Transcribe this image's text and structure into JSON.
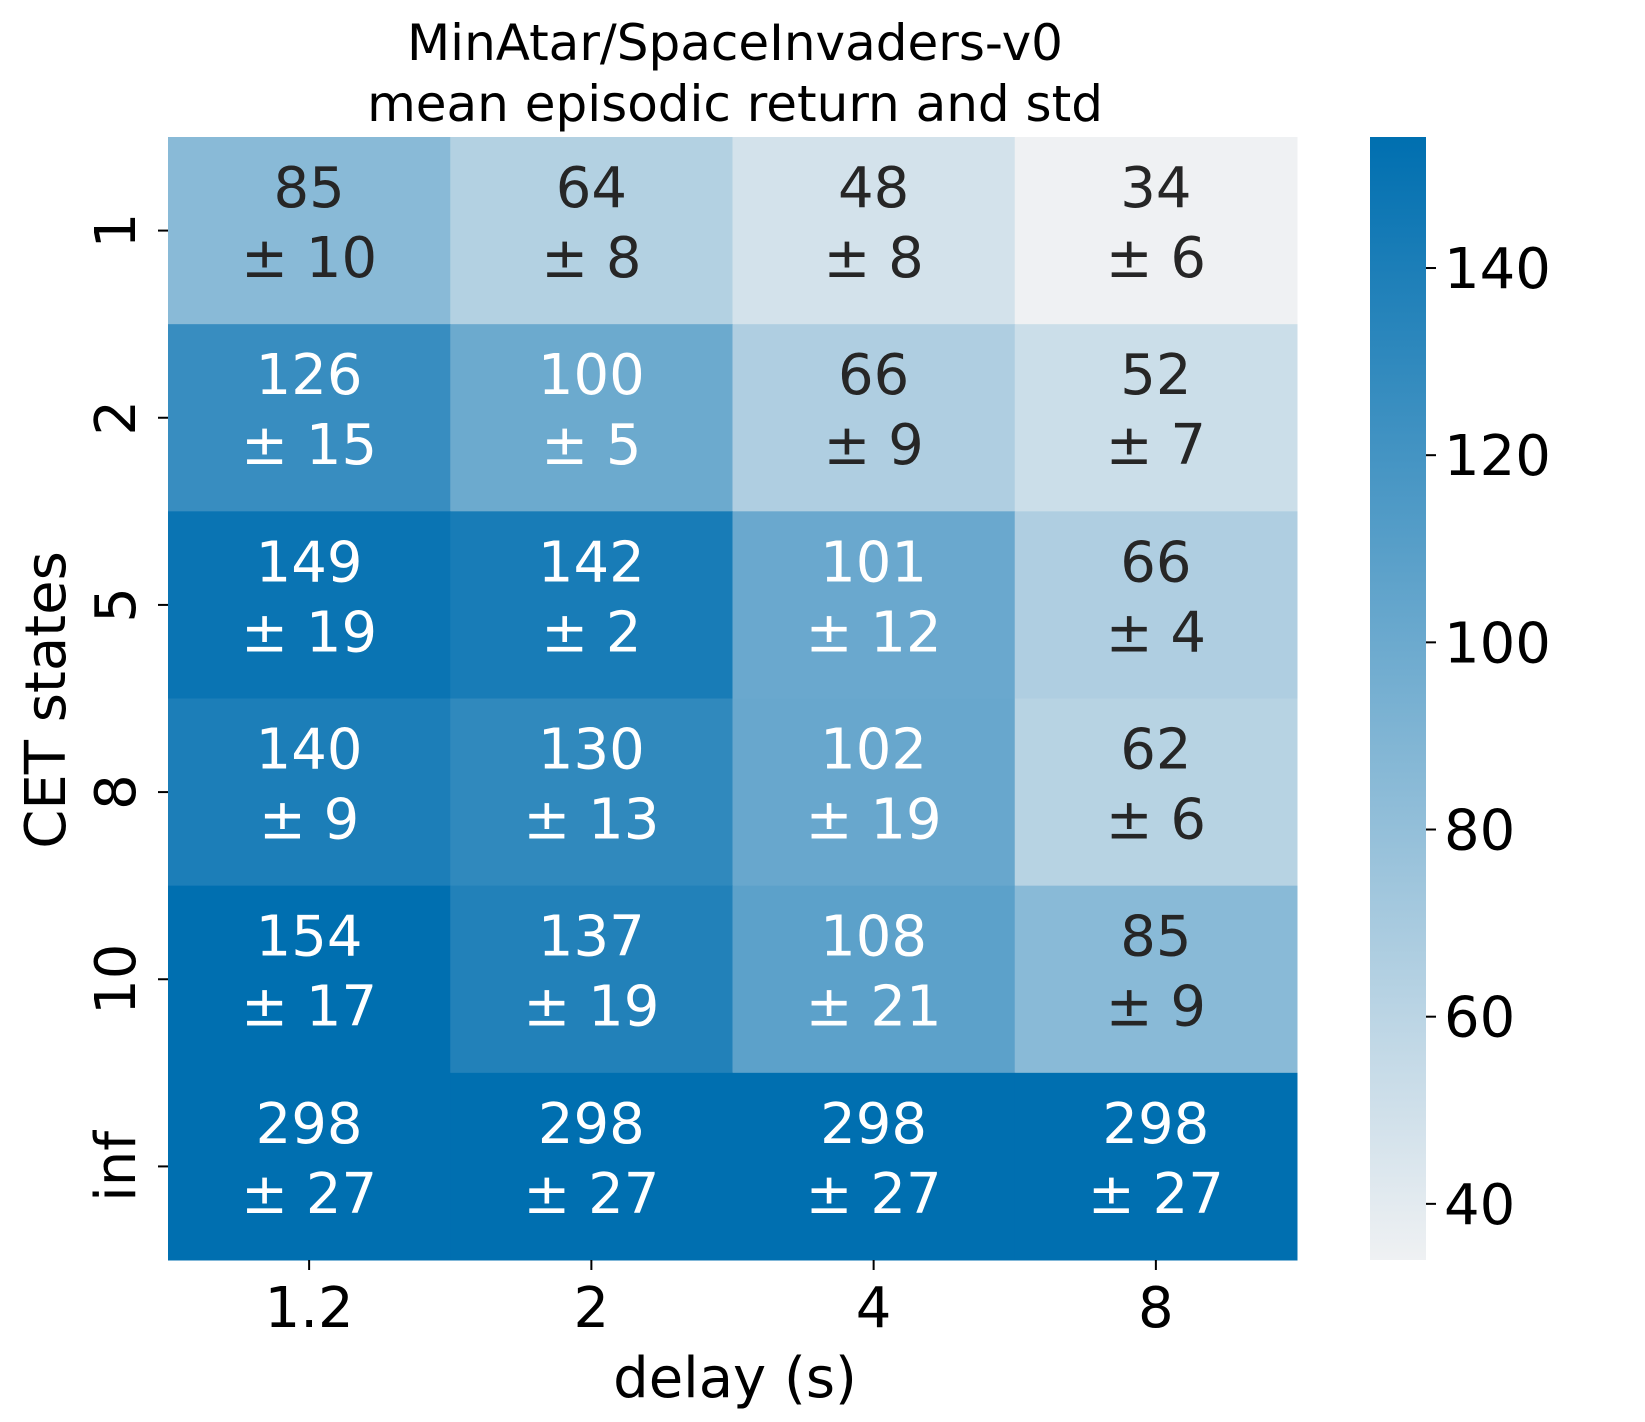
{
  "chart_data": {
    "type": "heatmap",
    "title": "MinAtar/SpaceInvaders-v0",
    "subtitle": "mean episodic return and std",
    "xlabel": "delay (s)",
    "ylabel": "CET states",
    "x_categories": [
      "1.2",
      "2",
      "4",
      "8"
    ],
    "y_categories": [
      "1",
      "2",
      "5",
      "8",
      "10",
      "inf"
    ],
    "values": [
      [
        85,
        64,
        48,
        34
      ],
      [
        126,
        100,
        66,
        52
      ],
      [
        149,
        142,
        101,
        66
      ],
      [
        140,
        130,
        102,
        62
      ],
      [
        154,
        137,
        108,
        85
      ],
      [
        298,
        298,
        298,
        298
      ]
    ],
    "std": [
      [
        10,
        8,
        8,
        6
      ],
      [
        15,
        5,
        9,
        7
      ],
      [
        19,
        2,
        12,
        4
      ],
      [
        9,
        13,
        19,
        6
      ],
      [
        17,
        19,
        21,
        9
      ],
      [
        27,
        27,
        27,
        27
      ]
    ],
    "colorbar": {
      "min": 34,
      "max": 154,
      "ticks": [
        40,
        60,
        80,
        100,
        120,
        140
      ],
      "colors": [
        "#eff1f3",
        "#006fb0"
      ]
    }
  }
}
